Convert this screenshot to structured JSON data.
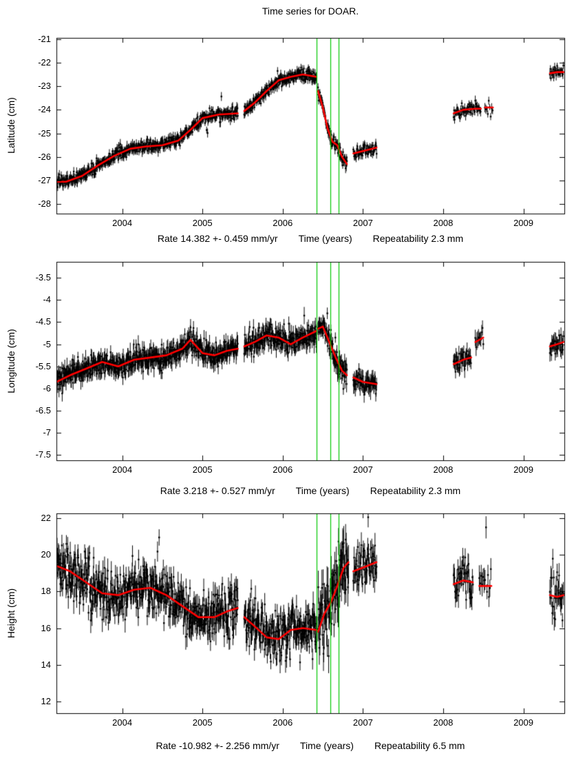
{
  "chart_data": {
    "type": "scatter",
    "title": "Time series for DOAR.",
    "xlabel": "Time (years)",
    "xlim": [
      2003.18,
      2009.51
    ],
    "xticks": [
      2004,
      2005,
      2006,
      2007,
      2008,
      2009
    ],
    "event_lines_x": [
      2006.42,
      2006.59,
      2006.7
    ],
    "colors": {
      "points": "#000000",
      "trend": "#ff0000",
      "event_lines": "#00c800",
      "axes": "#000000",
      "background": "#ffffff"
    },
    "panels": [
      {
        "name": "latitude",
        "ylabel": "Latitude (cm)",
        "ylim": [
          -28.4,
          -20.95
        ],
        "yticks": [
          -21,
          -22,
          -23,
          -24,
          -25,
          -26,
          -27,
          -28
        ],
        "rate_label": "Rate 14.382 +- 0.459 mm/yr",
        "repeatability_label": "Repeatability 2.3 mm",
        "noise_sd": 0.13,
        "errorbar": 0.17,
        "segments": [
          {
            "x": [
              2003.18,
              2003.3,
              2003.5,
              2003.7,
              2003.9,
              2004.1,
              2004.3,
              2004.5,
              2004.7,
              2004.85,
              2005.0,
              2005.2,
              2005.44
            ],
            "y": [
              -27.05,
              -27.05,
              -26.8,
              -26.35,
              -25.95,
              -25.65,
              -25.55,
              -25.5,
              -25.3,
              -24.85,
              -24.35,
              -24.2,
              -24.15
            ]
          },
          {
            "x": [
              2005.52,
              2005.65,
              2005.8,
              2005.95,
              2006.1,
              2006.25,
              2006.42
            ],
            "y": [
              -24.05,
              -23.7,
              -23.2,
              -22.75,
              -22.6,
              -22.5,
              -22.6
            ]
          },
          {
            "x": [
              2006.44,
              2006.5,
              2006.56,
              2006.62,
              2006.68,
              2006.74,
              2006.8
            ],
            "y": [
              -23.2,
              -23.9,
              -24.8,
              -25.35,
              -25.5,
              -26.0,
              -26.3
            ]
          },
          {
            "x": [
              2006.88,
              2007.0,
              2007.17
            ],
            "y": [
              -25.85,
              -25.75,
              -25.6
            ],
            "step": 0.005
          },
          {
            "x": [
              2008.13,
              2008.25,
              2008.4,
              2008.47
            ],
            "y": [
              -24.15,
              -24.0,
              -23.95,
              -23.95
            ],
            "step": 0.006
          },
          {
            "x": [
              2008.52,
              2008.62
            ],
            "y": [
              -23.9,
              -23.9
            ],
            "step": 0.012
          },
          {
            "x": [
              2009.33,
              2009.42,
              2009.5
            ],
            "y": [
              -22.45,
              -22.4,
              -22.4
            ],
            "step": 0.006
          }
        ]
      },
      {
        "name": "longitude",
        "ylabel": "Longitude (cm)",
        "ylim": [
          -7.62,
          -3.14
        ],
        "yticks": [
          -3.5,
          -4,
          -4.5,
          -5,
          -5.5,
          -6,
          -6.5,
          -7,
          -7.5
        ],
        "rate_label": "Rate 3.218 +- 0.527 mm/yr",
        "repeatability_label": "Repeatability 2.3 mm",
        "noise_sd": 0.12,
        "errorbar": 0.16,
        "segments": [
          {
            "x": [
              2003.18,
              2003.35,
              2003.55,
              2003.75,
              2003.95,
              2004.15,
              2004.35,
              2004.55,
              2004.75,
              2004.85,
              2005.0,
              2005.15,
              2005.3,
              2005.44
            ],
            "y": [
              -5.85,
              -5.7,
              -5.55,
              -5.4,
              -5.5,
              -5.35,
              -5.3,
              -5.25,
              -5.1,
              -4.9,
              -5.2,
              -5.25,
              -5.15,
              -5.1
            ]
          },
          {
            "x": [
              2005.52,
              2005.65,
              2005.8,
              2005.95,
              2006.1,
              2006.25,
              2006.42
            ],
            "y": [
              -5.05,
              -4.95,
              -4.8,
              -4.85,
              -5.0,
              -4.85,
              -4.7
            ]
          },
          {
            "x": [
              2006.44,
              2006.5,
              2006.58,
              2006.66,
              2006.74,
              2006.8
            ],
            "y": [
              -4.65,
              -4.6,
              -4.95,
              -5.3,
              -5.6,
              -5.7
            ]
          },
          {
            "x": [
              2006.88,
              2007.0,
              2007.17
            ],
            "y": [
              -5.75,
              -5.85,
              -5.9
            ],
            "step": 0.005
          },
          {
            "x": [
              2008.13,
              2008.25,
              2008.35
            ],
            "y": [
              -5.45,
              -5.35,
              -5.3
            ],
            "step": 0.006
          },
          {
            "x": [
              2008.4,
              2008.5
            ],
            "y": [
              -4.95,
              -4.85
            ],
            "step": 0.01
          },
          {
            "x": [
              2009.33,
              2009.42,
              2009.5
            ],
            "y": [
              -5.05,
              -5.0,
              -4.95
            ],
            "step": 0.006
          }
        ]
      },
      {
        "name": "height",
        "ylabel": "Height (cm)",
        "ylim": [
          11.36,
          22.26
        ],
        "yticks": [
          22,
          20,
          18,
          16,
          14,
          12
        ],
        "rate_label": "Rate -10.982 +- 2.256 mm/yr",
        "repeatability_label": "Repeatability 6.5 mm",
        "noise_sd": 0.65,
        "errorbar": 0.55,
        "segments": [
          {
            "x": [
              2003.18,
              2003.35,
              2003.55,
              2003.75,
              2003.95,
              2004.15,
              2004.35,
              2004.55,
              2004.75,
              2004.95,
              2005.15,
              2005.3,
              2005.44
            ],
            "y": [
              19.4,
              19.1,
              18.5,
              17.9,
              17.8,
              18.1,
              18.2,
              17.8,
              17.2,
              16.6,
              16.6,
              16.9,
              17.1
            ]
          },
          {
            "x": [
              2005.52,
              2005.65,
              2005.8,
              2005.95,
              2006.1,
              2006.25,
              2006.42
            ],
            "y": [
              16.6,
              16.1,
              15.5,
              15.4,
              15.9,
              16.0,
              15.9
            ]
          },
          {
            "x": [
              2006.44,
              2006.52,
              2006.6,
              2006.68,
              2006.76,
              2006.82
            ],
            "y": [
              15.8,
              16.8,
              17.4,
              18.3,
              19.3,
              19.6
            ],
            "noise_scale": 1.5
          },
          {
            "x": [
              2006.88,
              2007.0,
              2007.17
            ],
            "y": [
              19.1,
              19.3,
              19.6
            ],
            "step": 0.005
          },
          {
            "x": [
              2008.13,
              2008.25,
              2008.37
            ],
            "y": [
              18.4,
              18.6,
              18.5
            ],
            "step": 0.006
          },
          {
            "x": [
              2008.45,
              2008.6
            ],
            "y": [
              18.3,
              18.3
            ],
            "step": 0.012
          },
          {
            "x": [
              2009.33,
              2009.42,
              2009.5
            ],
            "y": [
              17.8,
              17.7,
              17.8
            ],
            "step": 0.006
          }
        ]
      }
    ]
  }
}
